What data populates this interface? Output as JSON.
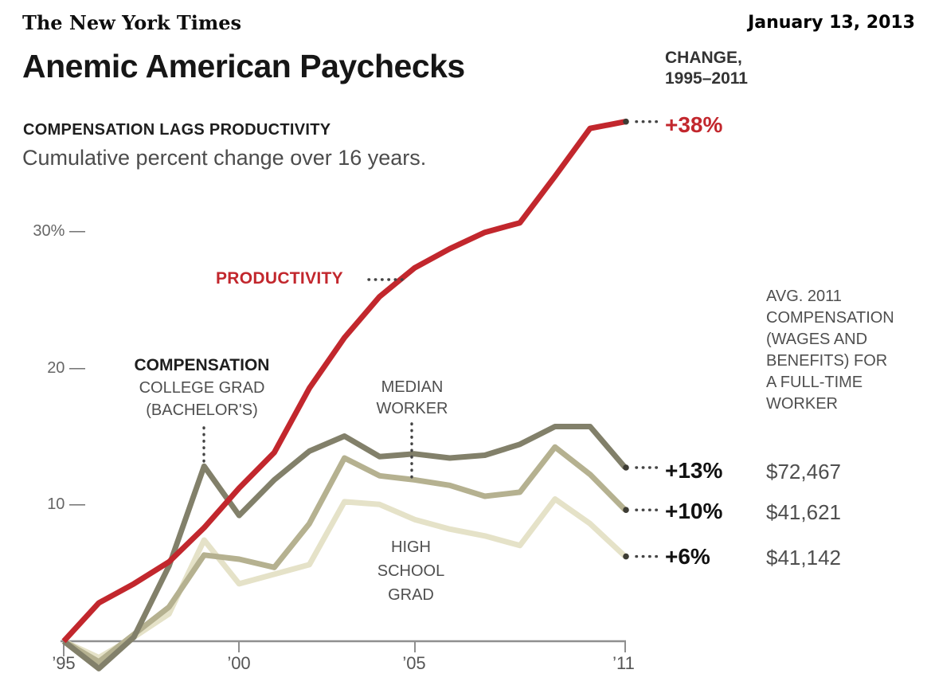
{
  "masthead": {
    "logo_text": "The New York Times",
    "date": "January 13, 2013"
  },
  "title": "Anemic American Paychecks",
  "subtitle": {
    "heading": "COMPENSATION LAGS PRODUCTIVITY",
    "description": "Cumulative percent change over 16 years."
  },
  "change_header": {
    "line1": "CHANGE,",
    "line2": "1995–2011"
  },
  "avg_note": {
    "lines": [
      "AVG. 2011",
      "COMPENSATION",
      "(WAGES AND",
      "BENEFITS) FOR",
      "A FULL-TIME",
      "WORKER"
    ]
  },
  "callouts": {
    "productivity": {
      "change": "+38%"
    },
    "college_grad": {
      "change": "+13%",
      "avg_2011": "$72,467"
    },
    "median_worker": {
      "change": "+10%",
      "avg_2011": "$41,621"
    },
    "high_school_grad": {
      "change": "+6%",
      "avg_2011": "$41,142"
    }
  },
  "in_chart_labels": {
    "productivity": "PRODUCTIVITY",
    "compensation_line1": "COMPENSATION",
    "compensation_line2": "COLLEGE GRAD",
    "compensation_line3": "(BACHELOR'S)",
    "median_line1": "MEDIAN",
    "median_line2": "WORKER",
    "highschool_line1": "HIGH",
    "highschool_line2": "SCHOOL",
    "highschool_line3": "GRAD"
  },
  "axes": {
    "y_ticks": [
      "30% —",
      "20 —",
      "10 —"
    ],
    "x_ticks": [
      "’95",
      "’00",
      "’05",
      "’11"
    ]
  },
  "colors": {
    "productivity_red": "#c2272d",
    "college_grad_olive": "#82806a",
    "median_worker_khaki": "#b5b190",
    "high_school_cream": "#e5e2c8",
    "axis_gray": "#8f8f8f",
    "leader_dot": "#3d3c34"
  },
  "chart_data": {
    "type": "line",
    "title": "Anemic American Paychecks",
    "subtitle": "Compensation lags productivity — cumulative percent change over 16 years",
    "x": [
      1995,
      1996,
      1997,
      1998,
      1999,
      2000,
      2001,
      2002,
      2003,
      2004,
      2005,
      2006,
      2007,
      2008,
      2009,
      2010,
      2011
    ],
    "x_tick_years": [
      1995,
      2000,
      2005,
      2011
    ],
    "x_tick_labels": [
      "’95",
      "’00",
      "’05",
      "’11"
    ],
    "ylabel": "Cumulative percent change since 1995",
    "y_ticks_percent": [
      10,
      20,
      30
    ],
    "ylim": [
      -3,
      40
    ],
    "grid": false,
    "legend_position": "inline-annotations",
    "series": [
      {
        "name": "Productivity",
        "color": "#c2272d",
        "change_1995_2011": "+38%",
        "values": [
          0,
          2.8,
          4.2,
          5.8,
          8.3,
          11.2,
          13.8,
          18.5,
          22.2,
          25.2,
          27.3,
          28.7,
          29.9,
          30.6,
          34.0,
          37.5,
          38.0
        ]
      },
      {
        "name": "Compensation, college grad (bachelor's)",
        "color": "#82806a",
        "change_1995_2011": "+13%",
        "avg_2011_compensation": "$72,467",
        "values": [
          0,
          -2.0,
          0.3,
          5.5,
          12.8,
          9.2,
          11.8,
          13.9,
          15.0,
          13.5,
          13.7,
          13.4,
          13.6,
          14.4,
          15.7,
          15.7,
          12.7
        ]
      },
      {
        "name": "Compensation, median worker",
        "color": "#b5b190",
        "change_1995_2011": "+10%",
        "avg_2011_compensation": "$41,621",
        "values": [
          0,
          -1.5,
          0.5,
          2.5,
          6.3,
          6.0,
          5.4,
          8.6,
          13.4,
          12.1,
          11.8,
          11.4,
          10.6,
          10.9,
          14.2,
          12.2,
          9.6
        ]
      },
      {
        "name": "Compensation, high school grad",
        "color": "#e5e2c8",
        "change_1995_2011": "+6%",
        "avg_2011_compensation": "$41,142",
        "values": [
          0,
          -1.2,
          0.3,
          2.0,
          7.4,
          4.2,
          4.9,
          5.6,
          10.2,
          10.0,
          8.9,
          8.2,
          7.7,
          7.0,
          10.4,
          8.6,
          6.2
        ]
      }
    ]
  }
}
